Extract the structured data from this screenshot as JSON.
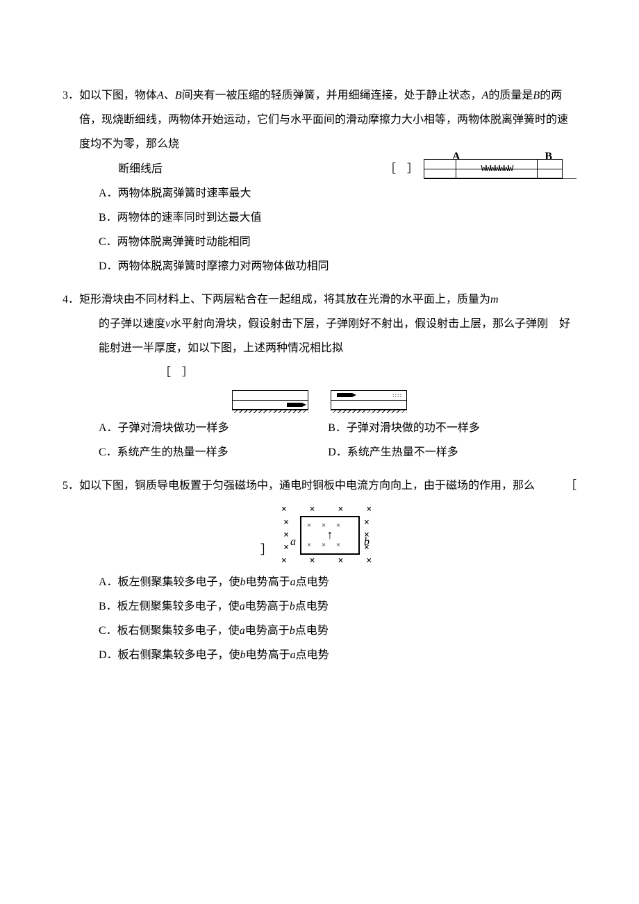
{
  "q3": {
    "num": "3．",
    "stem": "如以下图，物体<span class=\"italic\">A</span>、<span class=\"italic\">B</span>间夹有一被压缩的轻质弹簧，并用细绳连接，处于静止状态，<span class=\"italic\">A</span>的质量是<span class=\"italic\">B</span>的两倍，现烧断细线，两物体开始运动，它们与水平面间的滑动摩擦力大小相等，两物体脱离弹簧时的速度均不为零，那么烧",
    "stem_tail": "断细线后",
    "bracket": "［　］",
    "label_a": "A",
    "label_b": "B",
    "optA": "A．两物体脱离弹簧时速率最大",
    "optB": "B．两物体的速率同时到达最大值",
    "optC": "C．两物体脱离弹簧时动能相同",
    "optD": "D．两物体脱离弹簧时摩擦力对两物体做功相同"
  },
  "q4": {
    "num": "4．",
    "stem1": "矩形滑块由不同材料上、下两层粘合在一起组成，将其放在光滑的水平面上，质量为<span class=\"italic\">m</span>",
    "stem2": "的子弹以速度<span class=\"italic\">v</span>水平射向滑块，假设射击下层，子弹刚好不射出，假设射击上层，那么子弹刚　好能射进一半厚度，如以下图，上述两种情况相比拟",
    "bracket": "［　］",
    "optA": "A．子弹对滑块做功一样多",
    "optB": "B．子弹对滑块做的功不一样多",
    "optC": "C．系统产生的热量一样多",
    "optD": "D．系统产生热量不一样多"
  },
  "q5": {
    "num": "5．",
    "stem": "如以下图，铜质导电板置于匀强磁场中，通电时铜板中电流方向向上，由于磁场的作用，那么",
    "lbracket": "［",
    "rbracket": "］",
    "side_a": "a",
    "side_b": "b",
    "optA": "A．板左侧聚集较多电子，使<span class=\"italic\">b</span>电势高于<span class=\"italic\">a</span>点电势",
    "optB": "B．板左侧聚集较多电子，使<span class=\"italic\">a</span>电势高于<span class=\"italic\">b</span>点电势",
    "optC": "C．板右侧聚集较多电子，使<span class=\"italic\">a</span>电势高于<span class=\"italic\">b</span>点电势",
    "optD": "D．板右侧聚集较多电子，使<span class=\"italic\">b</span>电势高于<span class=\"italic\">a</span>点电势"
  }
}
